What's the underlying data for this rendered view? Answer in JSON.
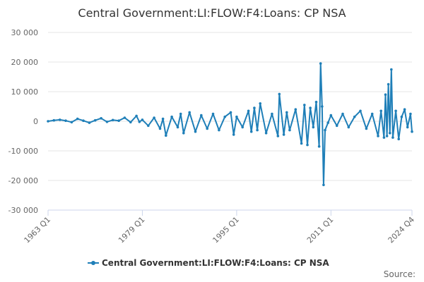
{
  "chart_data": {
    "type": "line",
    "title": "Central Government:LI:FLOW:F4:Loans: CP NSA",
    "xlabel": "",
    "ylabel": "",
    "ylim": [
      -30000,
      30000
    ],
    "yticks": [
      "30 000",
      "20 000",
      "10 000",
      "0",
      "-10 000",
      "-20 000",
      "-30 000"
    ],
    "ytick_values": [
      30000,
      20000,
      10000,
      0,
      -10000,
      -20000,
      -30000
    ],
    "xticks": [
      "1963 Q1",
      "1979 Q1",
      "1995 Q1",
      "2011 Q1",
      "2024 Q4"
    ],
    "xtick_values": [
      1963.0,
      1979.0,
      1995.0,
      2011.0,
      2024.75
    ],
    "xlim": [
      1963.0,
      2024.75
    ],
    "grid": "horizontal",
    "legend_position": "bottom",
    "series": [
      {
        "name": "Central Government:LI:FLOW:F4:Loans: CP NSA",
        "color": "#1f7fb8",
        "x": [
          1963.0,
          1964.0,
          1965.0,
          1966.0,
          1967.0,
          1968.0,
          1969.0,
          1970.0,
          1971.0,
          1972.0,
          1973.0,
          1974.0,
          1975.0,
          1976.0,
          1977.0,
          1978.0,
          1978.5,
          1979.0,
          1980.0,
          1981.0,
          1982.0,
          1982.5,
          1983.0,
          1984.0,
          1985.0,
          1985.5,
          1986.0,
          1987.0,
          1988.0,
          1989.0,
          1990.0,
          1991.0,
          1992.0,
          1993.0,
          1994.0,
          1994.5,
          1995.0,
          1996.0,
          1997.0,
          1997.5,
          1998.0,
          1998.5,
          1999.0,
          2000.0,
          2001.0,
          2002.0,
          2002.25,
          2003.0,
          2003.5,
          2004.0,
          2005.0,
          2006.0,
          2006.5,
          2007.0,
          2007.5,
          2008.0,
          2008.5,
          2009.0,
          2009.25,
          2009.5,
          2009.75,
          2010.0,
          2010.5,
          2011.0,
          2012.0,
          2013.0,
          2014.0,
          2015.0,
          2016.0,
          2017.0,
          2018.0,
          2019.0,
          2019.5,
          2020.0,
          2020.25,
          2020.5,
          2020.75,
          2021.0,
          2021.25,
          2021.5,
          2022.0,
          2022.5,
          2023.0,
          2023.5,
          2024.0,
          2024.5,
          2024.75
        ],
        "y": [
          0,
          300,
          500,
          200,
          -300,
          800,
          200,
          -500,
          300,
          1000,
          -200,
          400,
          200,
          1200,
          -300,
          1800,
          -200,
          500,
          -1500,
          1200,
          -2500,
          800,
          -4800,
          1500,
          -2000,
          2500,
          -4000,
          3000,
          -3500,
          2000,
          -2500,
          2500,
          -3000,
          1500,
          3000,
          -4500,
          1500,
          -2000,
          3500,
          -3500,
          4500,
          -3000,
          6000,
          -4000,
          2500,
          -5000,
          9200,
          -4500,
          3000,
          -3000,
          4000,
          -7500,
          5500,
          -8000,
          4500,
          -2000,
          6500,
          -8500,
          19500,
          5000,
          -21500,
          -3000,
          -500,
          2000,
          -1500,
          2500,
          -2000,
          1500,
          3500,
          -2500,
          2500,
          -5000,
          3500,
          -5500,
          9000,
          -5000,
          12500,
          -4000,
          17500,
          -5500,
          3500,
          -6000,
          1500,
          4000,
          -2000,
          2500,
          -3500
        ]
      }
    ]
  },
  "source_label": "Source:"
}
